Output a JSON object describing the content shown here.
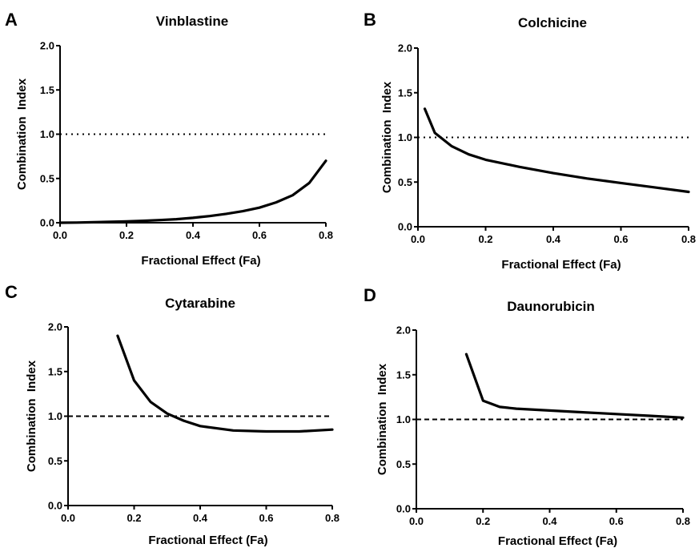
{
  "chart_data": [
    {
      "panel": "A",
      "type": "line",
      "title": "Vinblastine",
      "xlabel": "Fractional Effect (Fa)",
      "ylabel": "Combination  Index",
      "xlim": [
        0.0,
        0.8
      ],
      "ylim": [
        0.0,
        2.0
      ],
      "xticks": [
        "0.0",
        "0.2",
        "0.4",
        "0.6",
        "0.8"
      ],
      "yticks": [
        "0.0",
        "0.5",
        "1.0",
        "1.5",
        "2.0"
      ],
      "reference_line": {
        "y": 1.0,
        "style": "dotted"
      },
      "series": [
        {
          "x": [
            0.0,
            0.05,
            0.1,
            0.15,
            0.2,
            0.25,
            0.3,
            0.35,
            0.4,
            0.45,
            0.5,
            0.55,
            0.6,
            0.65,
            0.7,
            0.75,
            0.8
          ],
          "values": [
            0.0,
            0.002,
            0.005,
            0.01,
            0.015,
            0.022,
            0.03,
            0.04,
            0.055,
            0.075,
            0.1,
            0.13,
            0.17,
            0.23,
            0.31,
            0.45,
            0.7
          ]
        }
      ]
    },
    {
      "panel": "B",
      "type": "line",
      "title": "Colchicine",
      "xlabel": "Fractional Effect (Fa)",
      "ylabel": "Combination  Index",
      "xlim": [
        0.0,
        0.8
      ],
      "ylim": [
        0.0,
        2.0
      ],
      "xticks": [
        "0.0",
        "0.2",
        "0.4",
        "0.6",
        "0.8"
      ],
      "yticks": [
        "0.0",
        "0.5",
        "1.0",
        "1.5",
        "2.0"
      ],
      "reference_line": {
        "y": 1.0,
        "style": "dotted"
      },
      "series": [
        {
          "x": [
            0.02,
            0.05,
            0.1,
            0.15,
            0.2,
            0.3,
            0.4,
            0.5,
            0.6,
            0.7,
            0.8
          ],
          "values": [
            1.32,
            1.05,
            0.9,
            0.81,
            0.75,
            0.67,
            0.6,
            0.54,
            0.49,
            0.44,
            0.39
          ]
        }
      ]
    },
    {
      "panel": "C",
      "type": "line",
      "title": "Cytarabine",
      "xlabel": "Fractional Effect (Fa)",
      "ylabel": "Combination  Index",
      "xlim": [
        0.0,
        0.8
      ],
      "ylim": [
        0.0,
        2.0
      ],
      "xticks": [
        "0.0",
        "0.2",
        "0.4",
        "0.6",
        "0.8"
      ],
      "yticks": [
        "0.0",
        "0.5",
        "1.0",
        "1.5",
        "2.0"
      ],
      "reference_line": {
        "y": 1.0,
        "style": "dashed"
      },
      "series": [
        {
          "x": [
            0.15,
            0.2,
            0.25,
            0.3,
            0.35,
            0.4,
            0.5,
            0.6,
            0.7,
            0.8
          ],
          "values": [
            1.9,
            1.4,
            1.16,
            1.03,
            0.95,
            0.89,
            0.84,
            0.83,
            0.83,
            0.85
          ]
        }
      ]
    },
    {
      "panel": "D",
      "type": "line",
      "title": "Daunorubicin",
      "xlabel": "Fractional Effect (Fa)",
      "ylabel": "Combination  Index",
      "xlim": [
        0.0,
        0.8
      ],
      "ylim": [
        0.0,
        2.0
      ],
      "xticks": [
        "0.0",
        "0.2",
        "0.4",
        "0.6",
        "0.8"
      ],
      "yticks": [
        "0.0",
        "0.5",
        "1.0",
        "1.5",
        "2.0"
      ],
      "reference_line": {
        "y": 1.0,
        "style": "dashed"
      },
      "series": [
        {
          "x": [
            0.15,
            0.2,
            0.25,
            0.3,
            0.4,
            0.5,
            0.6,
            0.7,
            0.8
          ],
          "values": [
            1.73,
            1.21,
            1.14,
            1.12,
            1.1,
            1.08,
            1.06,
            1.04,
            1.02
          ]
        }
      ]
    }
  ]
}
